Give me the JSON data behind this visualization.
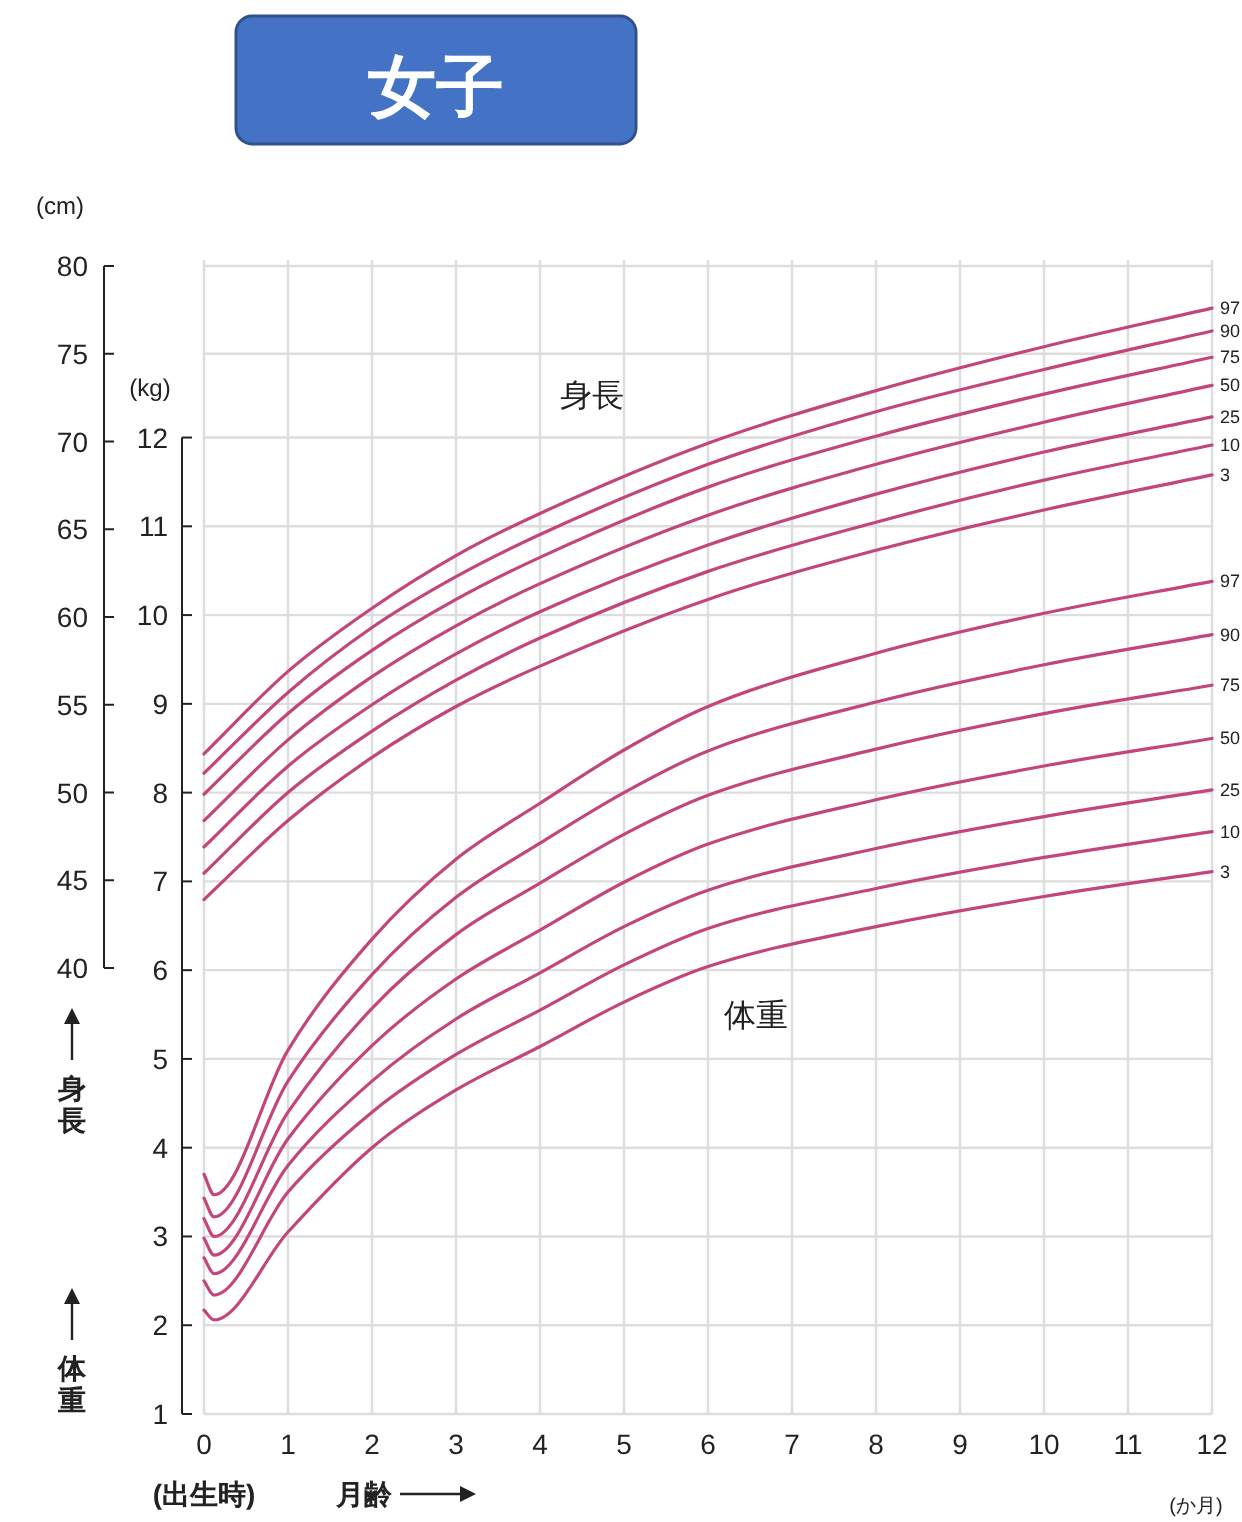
{
  "chart_data": {
    "type": "line",
    "title": "女子",
    "xlabel": "月齢",
    "xlim": [
      0,
      12
    ],
    "xticks": [
      0,
      1,
      2,
      3,
      4,
      5,
      6,
      7,
      8,
      9,
      10,
      11,
      12
    ],
    "ylim": [
      1,
      14
    ],
    "yticks": [
      1,
      2,
      3,
      4,
      5,
      6,
      7,
      8,
      9,
      10,
      11,
      12
    ],
    "y2lim": [
      40,
      80
    ],
    "y2ticks": [
      40,
      45,
      50,
      55,
      60,
      65,
      70,
      75,
      80
    ],
    "grid": true,
    "annotations": [
      "(cm)",
      "(kg)",
      "(出生時)",
      "(か月)",
      "身長",
      "体重",
      "身長",
      "体重"
    ],
    "series": [
      {
        "name": "97",
        "color": "#c2457c",
        "axis": "y2",
        "x": [
          0,
          1,
          2,
          3,
          4,
          6,
          8,
          10,
          12
        ],
        "values": [
          52.2,
          56.9,
          60.5,
          63.5,
          65.9,
          69.9,
          72.9,
          75.4,
          77.6
        ]
      },
      {
        "name": "90",
        "color": "#c2457c",
        "axis": "y2",
        "x": [
          0,
          1,
          2,
          3,
          4,
          6,
          8,
          10,
          12
        ],
        "values": [
          51.1,
          55.7,
          59.4,
          62.3,
          64.7,
          68.7,
          71.7,
          74.1,
          76.3
        ]
      },
      {
        "name": "75",
        "color": "#c2457c",
        "axis": "y2",
        "x": [
          0,
          1,
          2,
          3,
          4,
          6,
          8,
          10,
          12
        ],
        "values": [
          49.9,
          54.5,
          58.1,
          61.0,
          63.4,
          67.4,
          70.3,
          72.7,
          74.8
        ]
      },
      {
        "name": "50",
        "color": "#c2457c",
        "axis": "y2",
        "x": [
          0,
          1,
          2,
          3,
          4,
          6,
          8,
          10,
          12
        ],
        "values": [
          48.4,
          53.0,
          56.6,
          59.5,
          61.9,
          65.8,
          68.7,
          71.1,
          73.2
        ]
      },
      {
        "name": "25",
        "color": "#c2457c",
        "axis": "y2",
        "x": [
          0,
          1,
          2,
          3,
          4,
          6,
          8,
          10,
          12
        ],
        "values": [
          46.9,
          51.5,
          55.0,
          57.9,
          60.3,
          64.1,
          67.0,
          69.4,
          71.4
        ]
      },
      {
        "name": "10",
        "color": "#c2457c",
        "axis": "y2",
        "x": [
          0,
          1,
          2,
          3,
          4,
          6,
          8,
          10,
          12
        ],
        "values": [
          45.4,
          50.0,
          53.5,
          56.4,
          58.8,
          62.6,
          65.4,
          67.8,
          69.8
        ]
      },
      {
        "name": "3",
        "color": "#c2457c",
        "axis": "y2",
        "x": [
          0,
          1,
          2,
          3,
          4,
          6,
          8,
          10,
          12
        ],
        "values": [
          43.9,
          48.4,
          52.0,
          54.9,
          57.2,
          61.0,
          63.8,
          66.1,
          68.1
        ]
      },
      {
        "name": "97",
        "color": "#c2457c",
        "x": [
          0,
          0.12,
          1,
          2,
          3,
          4,
          5,
          6,
          8,
          10,
          12
        ],
        "values": [
          3.7,
          3.47,
          5.1,
          6.35,
          7.25,
          7.88,
          8.48,
          8.97,
          9.57,
          10.02,
          10.38
        ]
      },
      {
        "name": "90",
        "color": "#c2457c",
        "x": [
          0,
          0.12,
          1,
          2,
          3,
          4,
          5,
          6,
          8,
          10,
          12
        ],
        "values": [
          3.43,
          3.22,
          4.75,
          5.95,
          6.82,
          7.43,
          8.0,
          8.47,
          9.02,
          9.44,
          9.78
        ]
      },
      {
        "name": "75",
        "color": "#c2457c",
        "x": [
          0,
          0.12,
          1,
          2,
          3,
          4,
          5,
          6,
          8,
          10,
          12
        ],
        "values": [
          3.2,
          3.0,
          4.4,
          5.57,
          6.4,
          6.98,
          7.53,
          7.97,
          8.49,
          8.89,
          9.21
        ]
      },
      {
        "name": "50",
        "color": "#c2457c",
        "x": [
          0,
          0.12,
          1,
          2,
          3,
          4,
          5,
          6,
          8,
          10,
          12
        ],
        "values": [
          2.98,
          2.79,
          4.1,
          5.15,
          5.9,
          6.45,
          6.99,
          7.42,
          7.92,
          8.3,
          8.61
        ]
      },
      {
        "name": "25",
        "color": "#c2457c",
        "x": [
          0,
          0.12,
          1,
          2,
          3,
          4,
          5,
          6,
          8,
          10,
          12
        ],
        "values": [
          2.76,
          2.58,
          3.8,
          4.75,
          5.45,
          5.97,
          6.49,
          6.9,
          7.37,
          7.73,
          8.03
        ]
      },
      {
        "name": "10",
        "color": "#c2457c",
        "x": [
          0,
          0.12,
          1,
          2,
          3,
          4,
          5,
          6,
          8,
          10,
          12
        ],
        "values": [
          2.5,
          2.34,
          3.5,
          4.4,
          5.05,
          5.55,
          6.06,
          6.47,
          6.92,
          7.27,
          7.56
        ]
      },
      {
        "name": "3",
        "color": "#c2457c",
        "x": [
          0,
          0.12,
          1,
          2,
          3,
          4,
          5,
          6,
          8,
          10,
          12
        ],
        "values": [
          2.17,
          2.06,
          3.05,
          4.0,
          4.65,
          5.14,
          5.64,
          6.04,
          6.49,
          6.83,
          7.11
        ]
      }
    ]
  }
}
